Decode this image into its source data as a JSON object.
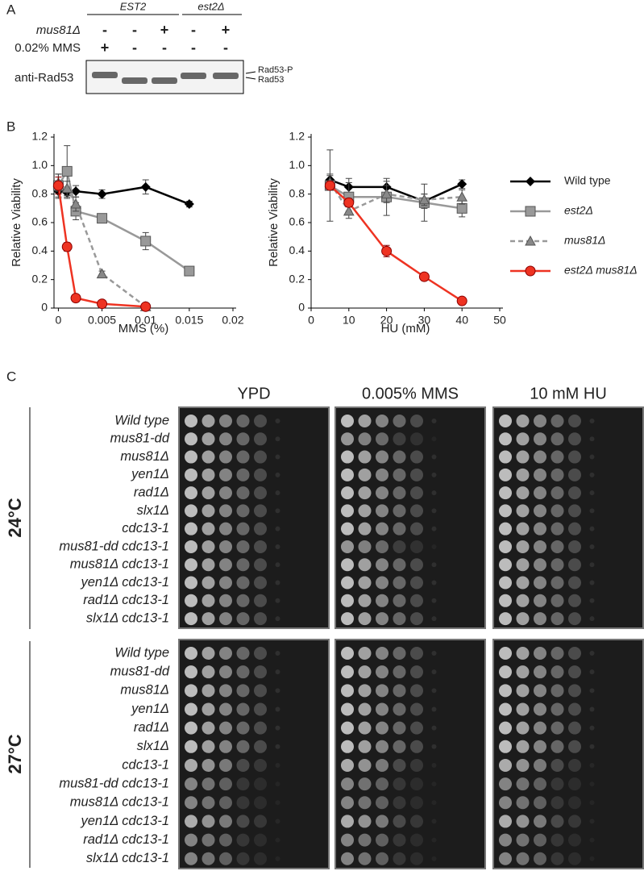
{
  "panel_labels": [
    "A",
    "B",
    "C"
  ],
  "panel_a": {
    "groups": [
      "EST2",
      "est2Δ"
    ],
    "rows": [
      {
        "label": "mus81Δ",
        "signs": [
          "-",
          "-",
          "+",
          "-",
          "+"
        ]
      },
      {
        "label": "0.02% MMS",
        "signs": [
          "+",
          "-",
          "-",
          "-",
          "-"
        ]
      }
    ],
    "antibody": "anti-Rad53",
    "bands": [
      "Rad53-P",
      "Rad53"
    ]
  },
  "chart_data": [
    {
      "type": "line",
      "xlabel": "MMS (%)",
      "ylabel": "Relative Viability",
      "x": [
        0,
        0.001,
        0.002,
        0.005,
        0.01,
        0.015
      ],
      "xlim": [
        -0.0005,
        0.02
      ],
      "xticks": [
        0,
        0.005,
        0.01,
        0.015,
        0.02
      ],
      "ylim": [
        0,
        1.2
      ],
      "yticks": [
        0,
        0.2,
        0.4,
        0.6,
        0.8,
        {
          "value": 1,
          "label": "1.0"
        },
        1.2
      ],
      "series": [
        {
          "name": "Wild type",
          "color": "#000000",
          "marker": "diamond",
          "line_style": "solid",
          "values": [
            0.82,
            0.81,
            0.82,
            0.8,
            0.85,
            0.73
          ],
          "errors": [
            0.05,
            0.04,
            0.04,
            0.03,
            0.05,
            0.02
          ]
        },
        {
          "name": "est2Δ",
          "color": "#999999",
          "marker": "square",
          "line_style": "solid",
          "values": [
            0.86,
            0.96,
            0.68,
            0.63,
            0.47,
            0.26
          ],
          "errors": [
            0.08,
            0.18,
            0.06,
            0.02,
            0.06,
            0.01
          ]
        },
        {
          "name": "mus81Δ",
          "color": "#999999",
          "marker": "triangle",
          "line_style": "dashed",
          "values": [
            0.88,
            0.84,
            0.73,
            0.24,
            0.01,
            null
          ],
          "errors": [
            0.06,
            0.05,
            0.05,
            0.02,
            0.01,
            null
          ]
        },
        {
          "name": "est2Δ mus81Δ",
          "color": "#ee3322",
          "marker": "circle",
          "line_style": "solid",
          "values": [
            0.86,
            0.43,
            0.07,
            0.03,
            0.01,
            null
          ],
          "errors": [
            0.06,
            0.03,
            0.01,
            0.01,
            0.005,
            null
          ]
        }
      ]
    },
    {
      "type": "line",
      "xlabel": "HU (mM)",
      "ylabel": "Relative Viability",
      "x": [
        5,
        10,
        20,
        30,
        40
      ],
      "xlim": [
        0,
        50
      ],
      "xticks": [
        0,
        10,
        20,
        30,
        40,
        50
      ],
      "ylim": [
        0,
        1.2
      ],
      "yticks": [
        0,
        0.2,
        0.4,
        0.6,
        0.8,
        {
          "value": 1,
          "label": "1.0"
        },
        1.2
      ],
      "legend": "right",
      "series": [
        {
          "name": "Wild type",
          "color": "#000000",
          "marker": "diamond",
          "line_style": "solid",
          "values": [
            0.9,
            0.85,
            0.85,
            0.75,
            0.87
          ],
          "errors": [
            0.04,
            0.06,
            0.04,
            0.05,
            0.03
          ]
        },
        {
          "name": "est2Δ",
          "color": "#999999",
          "marker": "square",
          "line_style": "solid",
          "values": [
            0.86,
            0.78,
            0.78,
            0.74,
            0.7
          ],
          "errors": [
            0.25,
            0.1,
            0.13,
            0.13,
            0.06
          ]
        },
        {
          "name": "mus81Δ",
          "color": "#999999",
          "marker": "triangle",
          "line_style": "dashed",
          "values": [
            0.88,
            0.68,
            0.8,
            0.76,
            0.78
          ],
          "errors": [
            0.05,
            0.05,
            0.06,
            0.04,
            0.05
          ]
        },
        {
          "name": "est2Δ mus81Δ",
          "color": "#ee3322",
          "marker": "circle",
          "line_style": "solid",
          "values": [
            0.86,
            0.74,
            0.4,
            0.22,
            0.05
          ],
          "errors": [
            0.03,
            0.03,
            0.04,
            0.01,
            0.01
          ]
        }
      ]
    }
  ],
  "panel_c": {
    "conditions": [
      "YPD",
      "0.005% MMS",
      "10 mM HU"
    ],
    "groups": [
      {
        "temperature": "24°C",
        "strains": [
          "Wild type",
          "mus81-dd",
          "mus81Δ",
          "yen1Δ",
          "rad1Δ",
          "slx1Δ",
          "cdc13-1",
          "mus81-dd cdc13-1",
          "mus81Δ cdc13-1",
          "yen1Δ cdc13-1",
          "rad1Δ cdc13-1",
          "slx1Δ cdc13-1"
        ]
      },
      {
        "temperature": "27°C",
        "strains": [
          "Wild type",
          "mus81-dd",
          "mus81Δ",
          "yen1Δ",
          "rad1Δ",
          "slx1Δ",
          "cdc13-1",
          "mus81-dd cdc13-1",
          "mus81Δ cdc13-1",
          "yen1Δ cdc13-1",
          "rad1Δ cdc13-1",
          "slx1Δ cdc13-1"
        ]
      }
    ]
  }
}
